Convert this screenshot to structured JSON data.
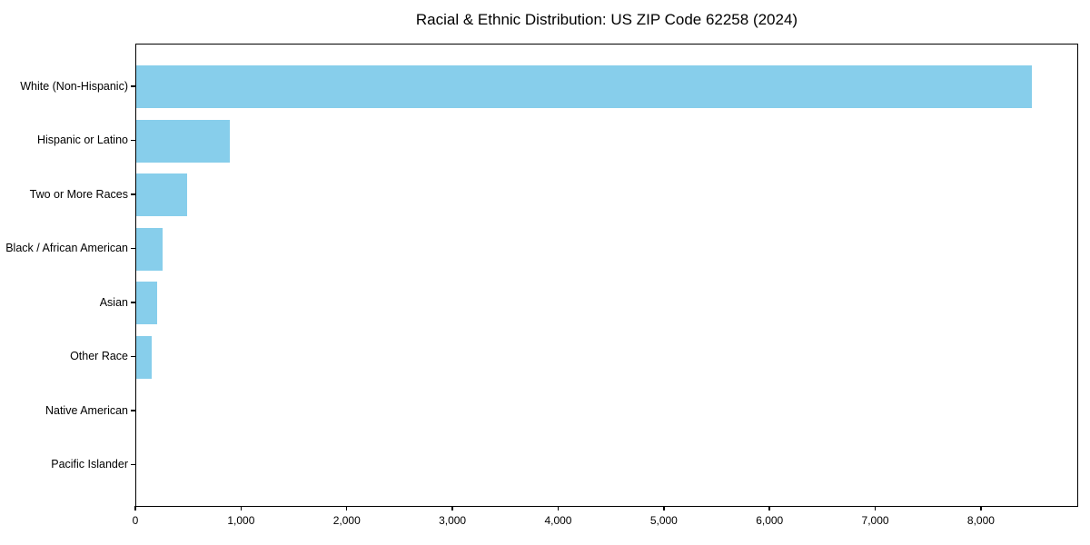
{
  "chart_data": {
    "type": "bar",
    "orientation": "horizontal",
    "title": "Racial & Ethnic Distribution: US ZIP Code 62258 (2024)",
    "categories": [
      "White (Non-Hispanic)",
      "Hispanic or Latino",
      "Two or More Races",
      "Black / African American",
      "Asian",
      "Other Race",
      "Native American",
      "Pacific Islander"
    ],
    "values": [
      8490,
      885,
      480,
      250,
      200,
      145,
      0,
      0
    ],
    "xlabel": "",
    "ylabel": "",
    "xlim": [
      0,
      8920
    ],
    "xticks": [
      0,
      1000,
      2000,
      3000,
      4000,
      5000,
      6000,
      7000,
      8000
    ],
    "xtick_labels": [
      "0",
      "1,000",
      "2,000",
      "3,000",
      "4,000",
      "5,000",
      "6,000",
      "7,000",
      "8,000"
    ],
    "bar_color": "#87CEEB",
    "axis_color": "#000000",
    "background_color": "#ffffff",
    "grid": false,
    "legend": null
  }
}
